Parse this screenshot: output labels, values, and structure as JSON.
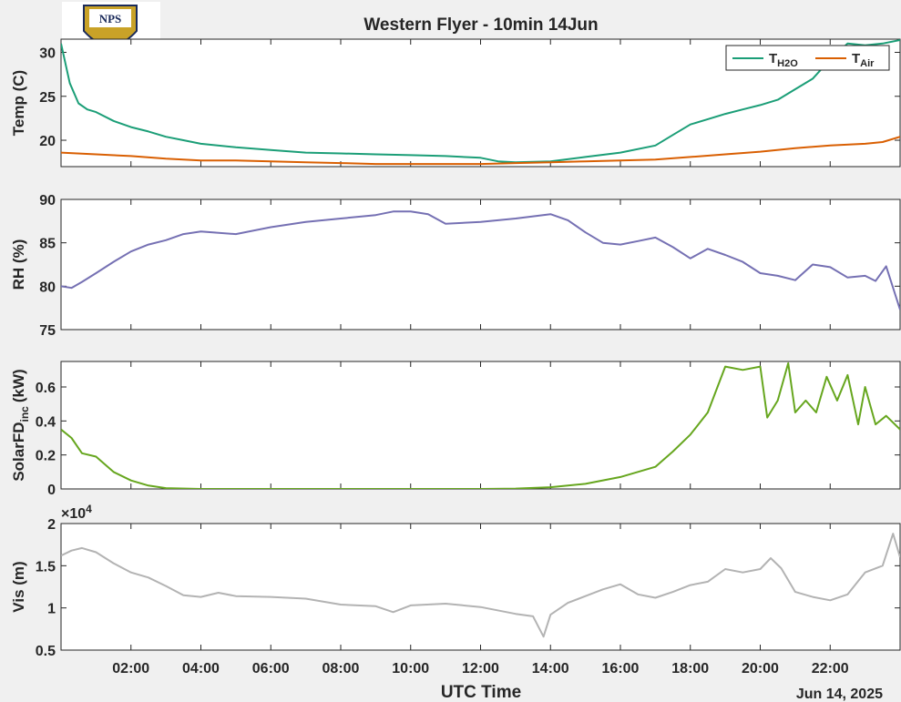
{
  "chart_data": {
    "title": "Western Flyer - 10min 14Jun",
    "xlabel": "UTC Time",
    "date_label": "Jun 14, 2025",
    "x_range_hours": [
      0,
      24
    ],
    "x_ticks": [
      {
        "h": 2,
        "label": "02:00"
      },
      {
        "h": 4,
        "label": "04:00"
      },
      {
        "h": 6,
        "label": "06:00"
      },
      {
        "h": 8,
        "label": "08:00"
      },
      {
        "h": 10,
        "label": "10:00"
      },
      {
        "h": 12,
        "label": "12:00"
      },
      {
        "h": 14,
        "label": "14:00"
      },
      {
        "h": 16,
        "label": "16:00"
      },
      {
        "h": 18,
        "label": "18:00"
      },
      {
        "h": 20,
        "label": "20:00"
      },
      {
        "h": 22,
        "label": "22:00"
      }
    ],
    "logo": {
      "text": "NPS"
    },
    "panels": [
      {
        "type": "line",
        "ylabel": "Temp (C)",
        "ylim": [
          17,
          31.5
        ],
        "yticks": [
          20,
          25,
          30
        ],
        "legend": {
          "position": "top-right",
          "entries": [
            {
              "base": "T",
              "sub": "H2O",
              "color": "#1b9e77"
            },
            {
              "base": "T",
              "sub": "Air",
              "color": "#d95f02"
            }
          ]
        },
        "series": [
          {
            "name": "T_H2O",
            "color": "#1b9e77",
            "points": [
              [
                0,
                31
              ],
              [
                0.25,
                26.5
              ],
              [
                0.5,
                24.2
              ],
              [
                0.75,
                23.5
              ],
              [
                1,
                23.2
              ],
              [
                1.5,
                22.2
              ],
              [
                2,
                21.5
              ],
              [
                2.5,
                21
              ],
              [
                3,
                20.4
              ],
              [
                3.5,
                20
              ],
              [
                4,
                19.6
              ],
              [
                5,
                19.2
              ],
              [
                6,
                18.9
              ],
              [
                7,
                18.6
              ],
              [
                8,
                18.5
              ],
              [
                9,
                18.4
              ],
              [
                10,
                18.3
              ],
              [
                11,
                18.2
              ],
              [
                12,
                18
              ],
              [
                12.5,
                17.6
              ],
              [
                13,
                17.5
              ],
              [
                14,
                17.6
              ],
              [
                15,
                18.1
              ],
              [
                16,
                18.6
              ],
              [
                17,
                19.4
              ],
              [
                17.5,
                20.6
              ],
              [
                18,
                21.8
              ],
              [
                18.5,
                22.4
              ],
              [
                19,
                23
              ],
              [
                19.5,
                23.5
              ],
              [
                20,
                24
              ],
              [
                20.5,
                24.6
              ],
              [
                21,
                25.8
              ],
              [
                21.5,
                27
              ],
              [
                22,
                29.2
              ],
              [
                22.5,
                31
              ],
              [
                23,
                30.8
              ],
              [
                23.5,
                31
              ],
              [
                24,
                31.4
              ]
            ]
          },
          {
            "name": "T_Air",
            "color": "#d95f02",
            "points": [
              [
                0,
                18.6
              ],
              [
                1,
                18.4
              ],
              [
                2,
                18.2
              ],
              [
                3,
                17.9
              ],
              [
                4,
                17.7
              ],
              [
                5,
                17.7
              ],
              [
                6,
                17.6
              ],
              [
                7,
                17.5
              ],
              [
                8,
                17.4
              ],
              [
                9,
                17.3
              ],
              [
                10,
                17.3
              ],
              [
                11,
                17.3
              ],
              [
                12,
                17.3
              ],
              [
                13,
                17.4
              ],
              [
                14,
                17.5
              ],
              [
                15,
                17.6
              ],
              [
                16,
                17.7
              ],
              [
                17,
                17.8
              ],
              [
                18,
                18.1
              ],
              [
                19,
                18.4
              ],
              [
                20,
                18.7
              ],
              [
                21,
                19.1
              ],
              [
                22,
                19.4
              ],
              [
                23,
                19.6
              ],
              [
                23.5,
                19.8
              ],
              [
                24,
                20.4
              ]
            ]
          }
        ]
      },
      {
        "type": "line",
        "ylabel": "RH (%)",
        "ylim": [
          75,
          90
        ],
        "yticks": [
          75,
          80,
          85,
          90
        ],
        "series": [
          {
            "name": "RH",
            "color": "#7570b3",
            "points": [
              [
                0,
                80
              ],
              [
                0.3,
                79.8
              ],
              [
                0.6,
                80.5
              ],
              [
                1,
                81.5
              ],
              [
                1.5,
                82.8
              ],
              [
                2,
                84
              ],
              [
                2.5,
                84.8
              ],
              [
                3,
                85.3
              ],
              [
                3.5,
                86
              ],
              [
                4,
                86.3
              ],
              [
                5,
                86
              ],
              [
                6,
                86.8
              ],
              [
                7,
                87.4
              ],
              [
                8,
                87.8
              ],
              [
                9,
                88.2
              ],
              [
                9.5,
                88.6
              ],
              [
                10,
                88.6
              ],
              [
                10.5,
                88.3
              ],
              [
                11,
                87.2
              ],
              [
                12,
                87.4
              ],
              [
                13,
                87.8
              ],
              [
                14,
                88.3
              ],
              [
                14.5,
                87.6
              ],
              [
                15,
                86.2
              ],
              [
                15.5,
                85
              ],
              [
                16,
                84.8
              ],
              [
                16.5,
                85.2
              ],
              [
                17,
                85.6
              ],
              [
                17.5,
                84.5
              ],
              [
                18,
                83.2
              ],
              [
                18.5,
                84.3
              ],
              [
                19,
                83.6
              ],
              [
                19.5,
                82.8
              ],
              [
                20,
                81.5
              ],
              [
                20.5,
                81.2
              ],
              [
                21,
                80.7
              ],
              [
                21.5,
                82.5
              ],
              [
                22,
                82.2
              ],
              [
                22.5,
                81
              ],
              [
                23,
                81.2
              ],
              [
                23.3,
                80.6
              ],
              [
                23.6,
                82.3
              ],
              [
                24,
                77.3
              ]
            ]
          }
        ]
      },
      {
        "type": "line",
        "ylabel": "SolarFD",
        "ylabel_sub": "inc",
        "ylabel_unit": "(kW)",
        "ylim": [
          0,
          0.75
        ],
        "yticks": [
          0,
          0.2,
          0.4,
          0.6
        ],
        "series": [
          {
            "name": "SolarFD_inc",
            "color": "#66a61e",
            "points": [
              [
                0,
                0.35
              ],
              [
                0.3,
                0.3
              ],
              [
                0.6,
                0.21
              ],
              [
                1,
                0.19
              ],
              [
                1.5,
                0.1
              ],
              [
                2,
                0.05
              ],
              [
                2.5,
                0.02
              ],
              [
                3,
                0.005
              ],
              [
                4,
                0
              ],
              [
                6,
                0
              ],
              [
                8,
                0
              ],
              [
                10,
                0
              ],
              [
                12,
                0
              ],
              [
                13,
                0.002
              ],
              [
                14,
                0.01
              ],
              [
                15,
                0.03
              ],
              [
                16,
                0.07
              ],
              [
                16.5,
                0.1
              ],
              [
                17,
                0.13
              ],
              [
                17.5,
                0.22
              ],
              [
                18,
                0.32
              ],
              [
                18.5,
                0.45
              ],
              [
                19,
                0.72
              ],
              [
                19.5,
                0.7
              ],
              [
                20,
                0.72
              ],
              [
                20.2,
                0.42
              ],
              [
                20.5,
                0.52
              ],
              [
                20.8,
                0.74
              ],
              [
                21,
                0.45
              ],
              [
                21.3,
                0.52
              ],
              [
                21.6,
                0.45
              ],
              [
                21.9,
                0.66
              ],
              [
                22.2,
                0.52
              ],
              [
                22.5,
                0.67
              ],
              [
                22.8,
                0.38
              ],
              [
                23,
                0.6
              ],
              [
                23.3,
                0.38
              ],
              [
                23.6,
                0.43
              ],
              [
                24,
                0.35
              ]
            ]
          }
        ]
      },
      {
        "type": "line",
        "ylabel": "Vis (m)",
        "ylim": [
          5000,
          20000
        ],
        "yticks": [
          5000,
          10000,
          15000,
          20000
        ],
        "ytick_labels": [
          "0.5",
          "1",
          "1.5",
          "2"
        ],
        "exponent_label": "×10",
        "exponent_power": "4",
        "series": [
          {
            "name": "Vis",
            "color": "#b3b3b3",
            "points": [
              [
                0,
                16200
              ],
              [
                0.3,
                16800
              ],
              [
                0.6,
                17100
              ],
              [
                1,
                16600
              ],
              [
                1.5,
                15300
              ],
              [
                2,
                14200
              ],
              [
                2.5,
                13600
              ],
              [
                3,
                12600
              ],
              [
                3.5,
                11500
              ],
              [
                4,
                11300
              ],
              [
                4.5,
                11800
              ],
              [
                5,
                11400
              ],
              [
                6,
                11300
              ],
              [
                7,
                11100
              ],
              [
                8,
                10400
              ],
              [
                9,
                10200
              ],
              [
                9.5,
                9500
              ],
              [
                10,
                10300
              ],
              [
                11,
                10500
              ],
              [
                12,
                10100
              ],
              [
                13,
                9300
              ],
              [
                13.5,
                9000
              ],
              [
                13.8,
                6600
              ],
              [
                14,
                9200
              ],
              [
                14.5,
                10600
              ],
              [
                15,
                11400
              ],
              [
                15.5,
                12200
              ],
              [
                16,
                12800
              ],
              [
                16.5,
                11600
              ],
              [
                17,
                11200
              ],
              [
                17.5,
                11900
              ],
              [
                18,
                12700
              ],
              [
                18.5,
                13100
              ],
              [
                19,
                14600
              ],
              [
                19.5,
                14200
              ],
              [
                20,
                14600
              ],
              [
                20.3,
                15900
              ],
              [
                20.6,
                14700
              ],
              [
                21,
                11900
              ],
              [
                21.5,
                11300
              ],
              [
                22,
                10900
              ],
              [
                22.5,
                11600
              ],
              [
                23,
                14200
              ],
              [
                23.5,
                15000
              ],
              [
                23.8,
                18800
              ],
              [
                24,
                16000
              ]
            ]
          }
        ]
      }
    ]
  }
}
